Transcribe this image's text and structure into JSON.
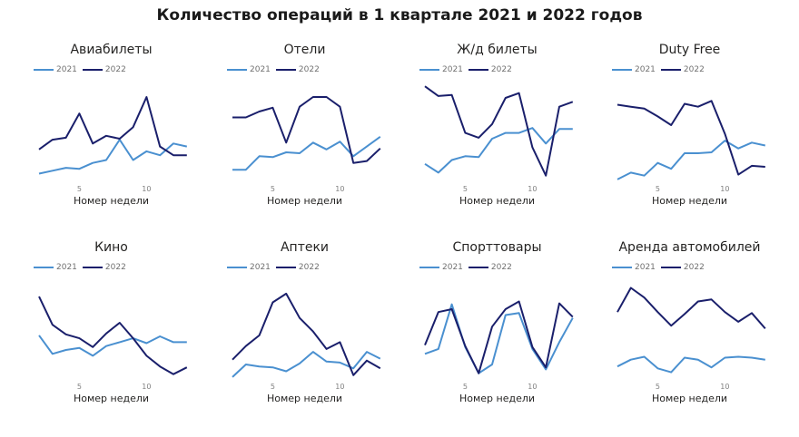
{
  "title": "Количество операций в 1 квартале 2021 и 2022 годов",
  "colors": {
    "y2021": "#4a90d0",
    "y2022": "#1a1f6b"
  },
  "legend": {
    "y2021": "2021",
    "y2022": "2022"
  },
  "xlabel": "Номер недели",
  "ticks": [
    "5",
    "10"
  ],
  "chart_data": [
    {
      "type": "line",
      "title": "Авиабилеты",
      "xlabel": "Номер недели",
      "ylabel": "",
      "x": [
        2,
        3,
        4,
        5,
        6,
        7,
        8,
        9,
        10,
        11,
        12,
        13
      ],
      "series": [
        {
          "name": "2021",
          "values": [
            7,
            10,
            13,
            12,
            18,
            21,
            42,
            21,
            30,
            26,
            38,
            35
          ]
        },
        {
          "name": "2022",
          "values": [
            32,
            42,
            44,
            69,
            38,
            46,
            43,
            55,
            86,
            35,
            26,
            26
          ]
        }
      ]
    },
    {
      "type": "line",
      "title": "Отели",
      "xlabel": "Номер недели",
      "ylabel": "",
      "x": [
        2,
        3,
        4,
        5,
        6,
        7,
        8,
        9,
        10,
        11,
        12,
        13
      ],
      "series": [
        {
          "name": "2021",
          "values": [
            11,
            11,
            25,
            24,
            29,
            28,
            39,
            32,
            40,
            25,
            35,
            45
          ]
        },
        {
          "name": "2022",
          "values": [
            65,
            65,
            71,
            75,
            39,
            76,
            86,
            86,
            76,
            18,
            20,
            33
          ]
        }
      ]
    },
    {
      "type": "line",
      "title": "Ж/д билеты",
      "xlabel": "Номер недели",
      "ylabel": "",
      "x": [
        2,
        3,
        4,
        5,
        6,
        7,
        8,
        9,
        10,
        11,
        12,
        13
      ],
      "series": [
        {
          "name": "2021",
          "values": [
            17,
            8,
            21,
            25,
            24,
            43,
            49,
            49,
            54,
            38,
            53,
            53
          ]
        },
        {
          "name": "2022",
          "values": [
            97,
            87,
            88,
            49,
            44,
            58,
            85,
            90,
            34,
            5,
            76,
            81
          ]
        }
      ]
    },
    {
      "type": "line",
      "title": "Duty Free",
      "xlabel": "Номер недели",
      "ylabel": "",
      "x": [
        2,
        3,
        4,
        5,
        6,
        7,
        8,
        9,
        10,
        11,
        12,
        13
      ],
      "series": [
        {
          "name": "2021",
          "values": [
            1,
            8,
            5,
            18,
            12,
            28,
            28,
            29,
            41,
            33,
            39,
            36
          ]
        },
        {
          "name": "2022",
          "values": [
            78,
            76,
            74,
            66,
            57,
            79,
            76,
            82,
            48,
            6,
            15,
            14
          ]
        }
      ]
    },
    {
      "type": "line",
      "title": "Кино",
      "xlabel": "Номер недели",
      "ylabel": "",
      "x": [
        2,
        3,
        4,
        5,
        6,
        7,
        8,
        9,
        10,
        11,
        12,
        13
      ],
      "series": [
        {
          "name": "2021",
          "values": [
            44,
            25,
            29,
            31,
            23,
            33,
            37,
            41,
            36,
            43,
            37,
            37
          ]
        },
        {
          "name": "2022",
          "values": [
            84,
            55,
            45,
            41,
            32,
            46,
            57,
            41,
            23,
            12,
            4,
            11
          ]
        }
      ]
    },
    {
      "type": "line",
      "title": "Аптеки",
      "xlabel": "Номер недели",
      "ylabel": "",
      "x": [
        2,
        3,
        4,
        5,
        6,
        7,
        8,
        9,
        10,
        11,
        12,
        13
      ],
      "series": [
        {
          "name": "2021",
          "values": [
            1,
            14,
            12,
            11,
            7,
            15,
            27,
            17,
            16,
            10,
            27,
            20
          ]
        },
        {
          "name": "2022",
          "values": [
            19,
            33,
            44,
            78,
            87,
            62,
            48,
            30,
            37,
            3,
            18,
            10
          ]
        }
      ]
    },
    {
      "type": "line",
      "title": "Спорттовары",
      "xlabel": "Номер недели",
      "ylabel": "",
      "x": [
        2,
        3,
        4,
        5,
        6,
        7,
        8,
        9,
        10,
        11,
        12,
        13
      ],
      "series": [
        {
          "name": "2021",
          "values": [
            25,
            30,
            76,
            32,
            5,
            14,
            65,
            67,
            30,
            9,
            37,
            62
          ]
        },
        {
          "name": "2022",
          "values": [
            34,
            68,
            71,
            33,
            5,
            53,
            71,
            79,
            32,
            11,
            77,
            63
          ]
        }
      ]
    },
    {
      "type": "line",
      "title": "Аренда автомобилей",
      "xlabel": "Номер недели",
      "ylabel": "",
      "x": [
        2,
        3,
        4,
        5,
        6,
        7,
        8,
        9,
        10,
        11,
        12,
        13
      ],
      "series": [
        {
          "name": "2021",
          "values": [
            12,
            19,
            22,
            10,
            6,
            21,
            19,
            11,
            21,
            22,
            21,
            19
          ]
        },
        {
          "name": "2022",
          "values": [
            68,
            93,
            83,
            68,
            54,
            66,
            79,
            81,
            68,
            58,
            67,
            51
          ]
        }
      ]
    }
  ]
}
